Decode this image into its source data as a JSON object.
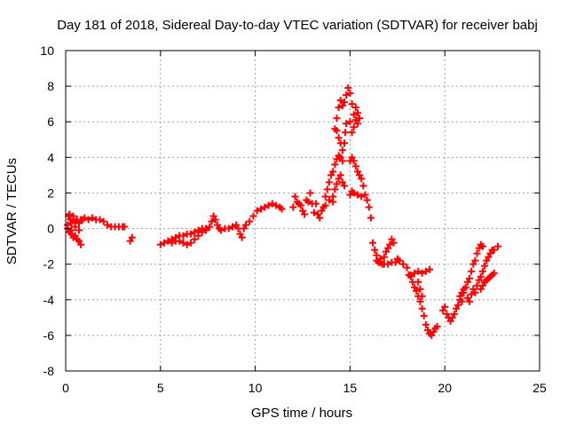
{
  "chart_data": {
    "type": "scatter",
    "title": "Day 181 of 2018, Sidereal Day-to-day VTEC variation (SDTVAR) for receiver babj",
    "xlabel": "GPS time / hours",
    "ylabel": "SDTVAR / TECUs",
    "xlim": [
      0,
      25
    ],
    "ylim": [
      -8,
      10
    ],
    "x_ticks": [
      0,
      5,
      10,
      15,
      20,
      25
    ],
    "y_ticks": [
      -8,
      -6,
      -4,
      -2,
      0,
      2,
      4,
      6,
      8,
      10
    ],
    "grid": true,
    "marker": "+",
    "marker_color": "#ff0000",
    "grid_color": "#a0a0a0",
    "series": [
      {
        "name": "SDTVAR",
        "points": [
          [
            0.1,
            0.2
          ],
          [
            0.15,
            0.7
          ],
          [
            0.2,
            0.8
          ],
          [
            0.25,
            0.5
          ],
          [
            0.3,
            0.3
          ],
          [
            0.4,
            0.7
          ],
          [
            0.5,
            0.4
          ],
          [
            0.6,
            0.5
          ],
          [
            0.7,
            0.3
          ],
          [
            0.8,
            0.5
          ],
          [
            0.9,
            0.5
          ],
          [
            1.0,
            0.6
          ],
          [
            1.2,
            0.5
          ],
          [
            1.4,
            0.6
          ],
          [
            1.6,
            0.5
          ],
          [
            1.8,
            0.5
          ],
          [
            2.0,
            0.4
          ],
          [
            2.2,
            0.2
          ],
          [
            2.4,
            0.1
          ],
          [
            2.6,
            0.1
          ],
          [
            2.8,
            0.1
          ],
          [
            3.0,
            0.1
          ],
          [
            3.1,
            0.1
          ],
          [
            0.1,
            0.0
          ],
          [
            0.2,
            -0.2
          ],
          [
            0.3,
            -0.3
          ],
          [
            0.4,
            -0.5
          ],
          [
            0.5,
            -0.4
          ],
          [
            0.6,
            -0.6
          ],
          [
            0.7,
            -0.7
          ],
          [
            0.8,
            -0.9
          ],
          [
            0.3,
            -0.1
          ],
          [
            0.5,
            0.1
          ],
          [
            0.7,
            -0.1
          ],
          [
            3.4,
            -0.7
          ],
          [
            3.5,
            -0.5
          ],
          [
            5.0,
            -0.9
          ],
          [
            5.2,
            -0.8
          ],
          [
            5.4,
            -0.7
          ],
          [
            5.6,
            -0.6
          ],
          [
            5.8,
            -0.5
          ],
          [
            6.0,
            -0.4
          ],
          [
            6.2,
            -0.4
          ],
          [
            6.4,
            -0.3
          ],
          [
            6.6,
            -0.3
          ],
          [
            6.8,
            -0.2
          ],
          [
            7.0,
            -0.1
          ],
          [
            7.2,
            0.0
          ],
          [
            7.4,
            0.0
          ],
          [
            7.6,
            0.1
          ],
          [
            5.6,
            -0.8
          ],
          [
            5.8,
            -0.7
          ],
          [
            6.0,
            -0.7
          ],
          [
            6.2,
            -0.8
          ],
          [
            6.4,
            -0.9
          ],
          [
            6.6,
            -0.8
          ],
          [
            6.8,
            -0.6
          ],
          [
            7.0,
            -0.4
          ],
          [
            7.2,
            -0.2
          ],
          [
            7.4,
            -0.1
          ],
          [
            7.7,
            0.4
          ],
          [
            7.8,
            0.7
          ],
          [
            7.9,
            0.5
          ],
          [
            8.0,
            0.2
          ],
          [
            8.1,
            0.0
          ],
          [
            8.2,
            -0.1
          ],
          [
            8.4,
            0.0
          ],
          [
            8.6,
            0.0
          ],
          [
            8.8,
            0.1
          ],
          [
            9.0,
            0.2
          ],
          [
            9.1,
            0.0
          ],
          [
            9.2,
            -0.3
          ],
          [
            9.3,
            -0.5
          ],
          [
            9.4,
            0.0
          ],
          [
            9.5,
            0.2
          ],
          [
            9.7,
            0.4
          ],
          [
            9.9,
            0.7
          ],
          [
            10.1,
            1.0
          ],
          [
            10.3,
            1.1
          ],
          [
            10.5,
            1.2
          ],
          [
            10.7,
            1.3
          ],
          [
            10.9,
            1.4
          ],
          [
            11.1,
            1.3
          ],
          [
            11.3,
            1.2
          ],
          [
            11.4,
            1.1
          ],
          [
            12.0,
            1.2
          ],
          [
            12.1,
            1.8
          ],
          [
            12.2,
            1.5
          ],
          [
            12.3,
            1.4
          ],
          [
            12.4,
            1.3
          ],
          [
            12.5,
            1.0
          ],
          [
            12.6,
            0.8
          ],
          [
            12.7,
            1.6
          ],
          [
            12.8,
            1.5
          ],
          [
            12.9,
            2.0
          ],
          [
            13.0,
            1.4
          ],
          [
            13.1,
            0.9
          ],
          [
            13.2,
            1.4
          ],
          [
            13.3,
            0.8
          ],
          [
            13.4,
            0.6
          ],
          [
            13.5,
            1.0
          ],
          [
            13.6,
            1.2
          ],
          [
            13.7,
            1.8
          ],
          [
            13.8,
            2.2
          ],
          [
            13.9,
            2.6
          ],
          [
            14.0,
            3.0
          ],
          [
            14.1,
            3.2
          ],
          [
            14.2,
            3.6
          ],
          [
            14.3,
            3.9
          ],
          [
            14.4,
            4.1
          ],
          [
            14.5,
            4.0
          ],
          [
            14.6,
            3.8
          ],
          [
            14.2,
            5.6
          ],
          [
            14.3,
            6.2
          ],
          [
            14.4,
            6.8
          ],
          [
            14.5,
            7.2
          ],
          [
            14.6,
            6.9
          ],
          [
            14.7,
            7.1
          ],
          [
            14.8,
            7.5
          ],
          [
            14.9,
            7.9
          ],
          [
            15.0,
            7.6
          ],
          [
            15.1,
            7.0
          ],
          [
            15.2,
            6.4
          ],
          [
            15.3,
            6.8
          ],
          [
            15.4,
            6.5
          ],
          [
            15.5,
            6.2
          ],
          [
            14.3,
            5.5
          ],
          [
            14.4,
            5.1
          ],
          [
            14.5,
            4.8
          ],
          [
            14.6,
            4.4
          ],
          [
            14.7,
            4.8
          ],
          [
            14.75,
            5.4
          ],
          [
            14.8,
            5.9
          ],
          [
            14.1,
            1.8
          ],
          [
            14.2,
            2.2
          ],
          [
            14.3,
            2.5
          ],
          [
            14.4,
            2.8
          ],
          [
            14.5,
            3.0
          ],
          [
            14.6,
            2.6
          ],
          [
            14.7,
            2.4
          ],
          [
            13.5,
            1.0
          ],
          [
            13.7,
            1.3
          ],
          [
            13.9,
            1.6
          ],
          [
            14.1,
            1.5
          ],
          [
            15.0,
            6.0
          ],
          [
            15.1,
            5.4
          ],
          [
            15.2,
            5.7
          ],
          [
            15.3,
            6.1
          ],
          [
            15.4,
            5.9
          ],
          [
            15.0,
            3.8
          ],
          [
            15.1,
            4.0
          ],
          [
            15.2,
            3.8
          ],
          [
            15.3,
            3.5
          ],
          [
            15.4,
            3.2
          ],
          [
            15.5,
            3.0
          ],
          [
            15.6,
            2.8
          ],
          [
            15.7,
            2.4
          ],
          [
            15.8,
            1.9
          ],
          [
            15.9,
            1.6
          ],
          [
            16.0,
            1.2
          ],
          [
            16.1,
            0.6
          ],
          [
            15.0,
            1.9
          ],
          [
            15.1,
            2.1
          ],
          [
            15.2,
            2.0
          ],
          [
            15.4,
            1.9
          ],
          [
            15.6,
            1.8
          ],
          [
            16.2,
            -0.8
          ],
          [
            16.3,
            -1.2
          ],
          [
            16.4,
            -1.5
          ],
          [
            16.5,
            -1.9
          ],
          [
            16.6,
            -1.7
          ],
          [
            16.7,
            -2.0
          ],
          [
            16.8,
            -1.6
          ],
          [
            16.9,
            -1.3
          ],
          [
            17.0,
            -1.1
          ],
          [
            17.1,
            -0.9
          ],
          [
            17.2,
            -0.6
          ],
          [
            17.3,
            -0.8
          ],
          [
            16.4,
            -1.8
          ],
          [
            16.6,
            -1.9
          ],
          [
            16.8,
            -2.0
          ],
          [
            17.0,
            -2.0
          ],
          [
            17.2,
            -1.9
          ],
          [
            17.4,
            -1.9
          ],
          [
            17.5,
            -1.7
          ],
          [
            17.6,
            -1.8
          ],
          [
            17.8,
            -2.0
          ],
          [
            18.0,
            -2.2
          ],
          [
            18.1,
            -2.6
          ],
          [
            18.2,
            -2.7
          ],
          [
            18.4,
            -2.5
          ],
          [
            18.6,
            -2.4
          ],
          [
            18.8,
            -2.5
          ],
          [
            19.0,
            -2.4
          ],
          [
            19.2,
            -2.3
          ],
          [
            18.2,
            -2.6
          ],
          [
            18.3,
            -3.0
          ],
          [
            18.4,
            -3.3
          ],
          [
            18.5,
            -3.5
          ],
          [
            18.6,
            -3.8
          ],
          [
            18.7,
            -4.1
          ],
          [
            18.8,
            -4.5
          ],
          [
            18.9,
            -4.9
          ],
          [
            19.0,
            -5.4
          ],
          [
            19.1,
            -5.7
          ],
          [
            19.2,
            -5.9
          ],
          [
            19.3,
            -6.0
          ],
          [
            19.4,
            -5.8
          ],
          [
            19.5,
            -5.6
          ],
          [
            19.6,
            -5.5
          ],
          [
            18.6,
            -3.0
          ],
          [
            18.7,
            -3.4
          ],
          [
            18.8,
            -3.8
          ],
          [
            19.9,
            -4.6
          ],
          [
            20.0,
            -4.4
          ],
          [
            20.1,
            -4.8
          ],
          [
            20.2,
            -5.0
          ],
          [
            20.3,
            -5.2
          ],
          [
            20.4,
            -5.0
          ],
          [
            20.5,
            -4.8
          ],
          [
            20.6,
            -4.5
          ],
          [
            20.7,
            -4.3
          ],
          [
            20.8,
            -4.0
          ],
          [
            20.9,
            -4.1
          ],
          [
            21.0,
            -3.6
          ],
          [
            21.1,
            -3.3
          ],
          [
            21.2,
            -3.0
          ],
          [
            21.3,
            -2.8
          ],
          [
            21.4,
            -2.4
          ],
          [
            21.5,
            -2.0
          ],
          [
            21.6,
            -1.8
          ],
          [
            21.7,
            -1.4
          ],
          [
            21.8,
            -1.1
          ],
          [
            21.9,
            -0.9
          ],
          [
            22.0,
            -1.0
          ],
          [
            21.2,
            -3.9
          ],
          [
            21.3,
            -4.1
          ],
          [
            21.4,
            -3.7
          ],
          [
            21.5,
            -3.4
          ],
          [
            21.6,
            -3.6
          ],
          [
            21.7,
            -3.2
          ],
          [
            21.8,
            -2.9
          ],
          [
            21.9,
            -2.7
          ],
          [
            22.0,
            -2.4
          ],
          [
            22.1,
            -2.1
          ],
          [
            22.2,
            -1.8
          ],
          [
            22.3,
            -1.6
          ],
          [
            22.4,
            -1.4
          ],
          [
            22.5,
            -1.2
          ],
          [
            22.6,
            -1.2
          ],
          [
            22.8,
            -1.0
          ],
          [
            21.9,
            -3.4
          ],
          [
            22.0,
            -3.2
          ],
          [
            22.1,
            -3.0
          ],
          [
            22.2,
            -2.9
          ],
          [
            22.3,
            -2.8
          ],
          [
            22.4,
            -2.7
          ],
          [
            22.5,
            -2.6
          ],
          [
            22.6,
            -2.5
          ],
          [
            20.8,
            -3.8
          ],
          [
            20.9,
            -3.6
          ],
          [
            21.0,
            -3.4
          ]
        ]
      }
    ]
  }
}
